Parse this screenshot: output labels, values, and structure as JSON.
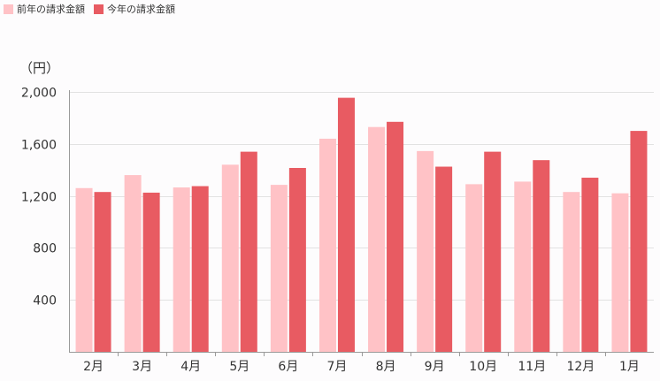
{
  "colors": {
    "previous_year": "#ffc2c6",
    "current_year": "#e85b62",
    "grid": "#e2e2e2",
    "axis": "#9a9a9a"
  },
  "legend": {
    "items": [
      {
        "label": "前年の請求金額",
        "color": "#ffc2c6"
      },
      {
        "label": "今年の請求金額",
        "color": "#e85b62"
      }
    ]
  },
  "chart_data": {
    "type": "bar",
    "categories": [
      "2月",
      "3月",
      "4月",
      "5月",
      "6月",
      "7月",
      "8月",
      "9月",
      "10月",
      "11月",
      "12月",
      "1月"
    ],
    "series": [
      {
        "name": "前年の請求金額",
        "values": [
          1260,
          1360,
          1265,
          1440,
          1285,
          1640,
          1730,
          1545,
          1290,
          1310,
          1230,
          1220
        ]
      },
      {
        "name": "今年の請求金額",
        "values": [
          1230,
          1225,
          1275,
          1540,
          1415,
          1955,
          1770,
          1425,
          1540,
          1475,
          1340,
          1700
        ]
      }
    ],
    "unit_label": "（円）",
    "ylim": [
      0,
      2000
    ],
    "yticks": [
      400,
      800,
      1200,
      1600,
      2000
    ],
    "ytick_labels": [
      "400",
      "800",
      "1,200",
      "1,600",
      "2,000"
    ],
    "grid": true,
    "legend_position": "top-left"
  }
}
